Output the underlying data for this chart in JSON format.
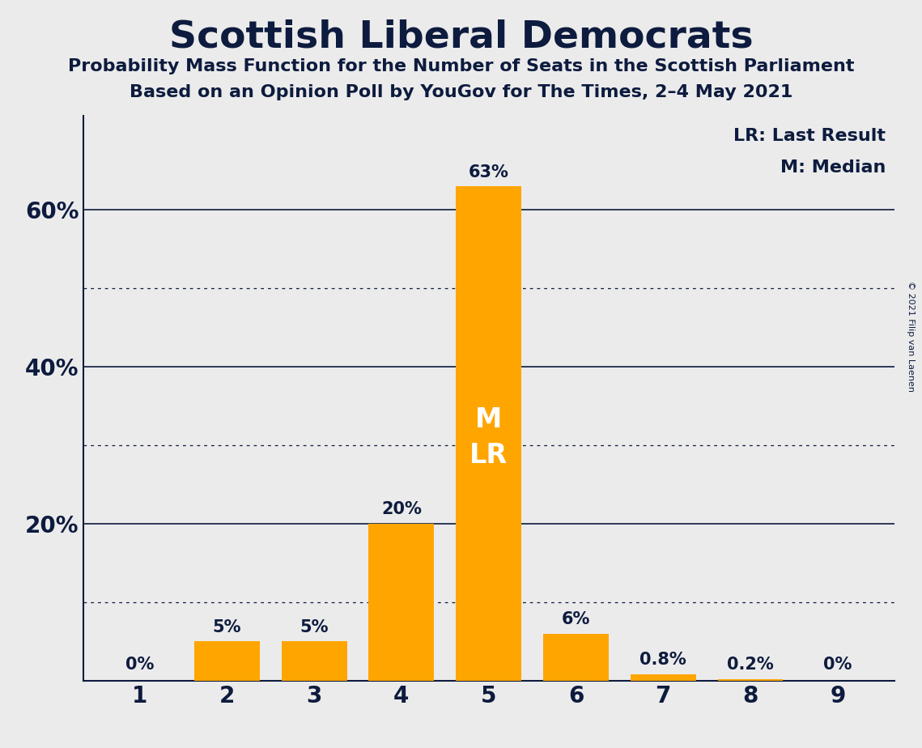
{
  "title": "Scottish Liberal Democrats",
  "subtitle1": "Probability Mass Function for the Number of Seats in the Scottish Parliament",
  "subtitle2": "Based on an Opinion Poll by YouGov for The Times, 2–4 May 2021",
  "copyright": "© 2021 Filip van Laenen",
  "categories": [
    1,
    2,
    3,
    4,
    5,
    6,
    7,
    8,
    9
  ],
  "values": [
    0.0,
    5.0,
    5.0,
    20.0,
    63.0,
    6.0,
    0.8,
    0.2,
    0.0
  ],
  "labels": [
    "0%",
    "5%",
    "5%",
    "20%",
    "63%",
    "6%",
    "0.8%",
    "0.2%",
    "0%"
  ],
  "bar_color": "#FFA500",
  "median_bar": 5,
  "last_result_bar": 5,
  "background_color": "#EBEBEB",
  "text_color": "#0D1B3E",
  "legend_lr": "LR: Last Result",
  "legend_m": "M: Median",
  "ylim": [
    0,
    72
  ],
  "solid_lines": [
    20,
    40,
    60
  ],
  "dotted_lines": [
    10,
    30,
    50
  ],
  "ytick_positions": [
    20,
    40,
    60
  ],
  "ytick_labels": [
    "20%",
    "40%",
    "60%"
  ]
}
